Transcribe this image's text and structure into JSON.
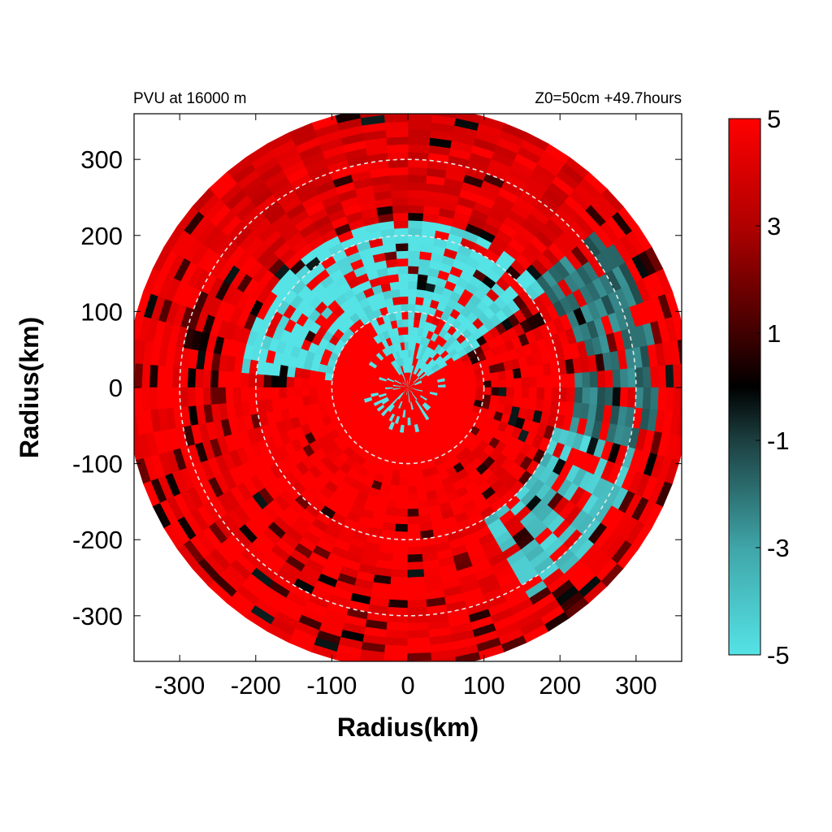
{
  "chart_data": {
    "type": "heatmap",
    "title_left": "PVU at 16000 m",
    "title_right": "Z0=50cm  +49.7hours",
    "xlabel": "Radius(km)",
    "ylabel": "Radius(km)",
    "xlim": [
      -360,
      360
    ],
    "ylim": [
      -360,
      360
    ],
    "x_ticks": [
      -300,
      -200,
      -100,
      0,
      100,
      200,
      300
    ],
    "y_ticks": [
      -300,
      -200,
      -100,
      0,
      100,
      200,
      300
    ],
    "domain_radius_km": 370,
    "reference_circles_km": [
      100,
      200,
      300
    ],
    "colorbar": {
      "range": [
        -5,
        5
      ],
      "ticks": [
        -5,
        -3,
        -1,
        1,
        3,
        5
      ],
      "stops": [
        {
          "value": -5,
          "color": "#55e3e6"
        },
        {
          "value": -3,
          "color": "#3fa5a8"
        },
        {
          "value": -1,
          "color": "#1c3f40"
        },
        {
          "value": 0,
          "color": "#000000"
        },
        {
          "value": 1,
          "color": "#400000"
        },
        {
          "value": 3,
          "color": "#b00000"
        },
        {
          "value": 5,
          "color": "#ff0000"
        }
      ]
    },
    "field_regions": [
      {
        "shape": "disk",
        "cx": -20,
        "cy": -20,
        "r": 110,
        "value": 5
      },
      {
        "shape": "sector",
        "r0": 100,
        "r1": 215,
        "a0": 35,
        "a1": 175,
        "value": -5
      },
      {
        "shape": "sector",
        "r0": 100,
        "r1": 240,
        "a0": 180,
        "a1": 300,
        "value": 5
      },
      {
        "shape": "sector",
        "r0": 20,
        "r1": 110,
        "a0": 30,
        "a1": 125,
        "value": -5
      },
      {
        "shape": "sector",
        "r0": 200,
        "r1": 320,
        "a0": 300,
        "a1": 345,
        "value": -4
      },
      {
        "shape": "sector",
        "r0": 220,
        "r1": 330,
        "a0": 345,
        "a1": 40,
        "value": -2
      },
      {
        "shape": "sector",
        "r0": 230,
        "r1": 370,
        "a0": 40,
        "a1": 140,
        "value": 4
      }
    ]
  }
}
